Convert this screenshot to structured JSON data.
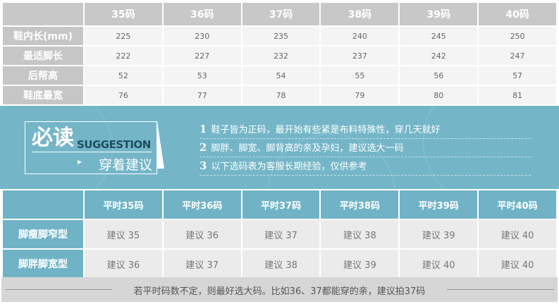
{
  "size_table": {
    "headers": [
      "",
      "35码",
      "36码",
      "37码",
      "38码",
      "39码",
      "40码"
    ],
    "rows": [
      {
        "label": "鞋内长(mm)",
        "values": [
          "225",
          "230",
          "235",
          "240",
          "245",
          "250"
        ]
      },
      {
        "label": "最适脚长",
        "values": [
          "222",
          "227",
          "232",
          "237",
          "242",
          "247"
        ]
      },
      {
        "label": "后帮高",
        "values": [
          "52",
          "53",
          "54",
          "55",
          "56",
          "57"
        ]
      },
      {
        "label": "鞋底最宽",
        "values": [
          "76",
          "77",
          "78",
          "79",
          "80",
          "81"
        ]
      }
    ]
  },
  "suggestion": {
    "title": "必读",
    "subtitle": "SUGGESTION",
    "caption": "穿着建议",
    "tips": [
      {
        "num": "1",
        "text": "鞋子皆为正码，最开始有些紧是布料特殊性，穿几天就好"
      },
      {
        "num": "2",
        "text": "脚胖、脚宽、脚背高的亲及孕妇，建议选大一码"
      },
      {
        "num": "3",
        "text": "以下选码表为客服长期经验，仅供参考"
      }
    ]
  },
  "advice_table": {
    "headers": [
      "",
      "平时35码",
      "平时36码",
      "平时37码",
      "平时38码",
      "平时39码",
      "平时40码"
    ],
    "rows": [
      {
        "label": "脚瘦脚窄型",
        "values": [
          "建议 35",
          "建议 36",
          "建议 37",
          "建议 38",
          "建议 39",
          "建议 40"
        ]
      },
      {
        "label": "脚胖脚宽型",
        "values": [
          "建议 36",
          "建议 37",
          "建议 38",
          "建议 39",
          "建议 40",
          "建议 40"
        ]
      }
    ]
  },
  "footer": "若平时码数不定，则最好选大码。比如36、37都能穿的亲，建议拍37码",
  "colors": {
    "accent": "#74b6c8",
    "header_gray": "#c8c8c8"
  }
}
